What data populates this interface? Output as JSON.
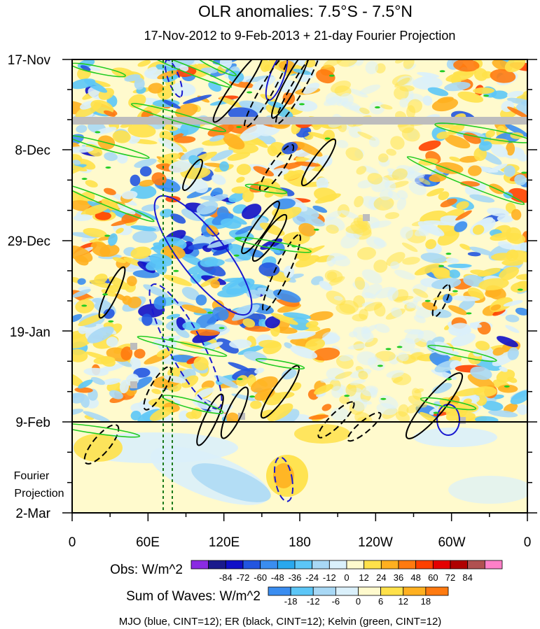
{
  "chart_data": {
    "type": "heatmap",
    "title": "OLR anomalies: 7.5°S - 7.5°N",
    "subtitle": "17-Nov-2012 to 9-Feb-2013 + 21-day Fourier Projection",
    "x_tick_labels": [
      "0",
      "60E",
      "120E",
      "180",
      "120W",
      "60W",
      "0"
    ],
    "y_tick_labels": [
      "17-Nov",
      "8-Dec",
      "29-Dec",
      "19-Jan",
      "9-Feb",
      "2-Mar"
    ],
    "y_side_label": [
      "Fourier",
      "Projection"
    ],
    "obs_label": "Obs: W/m^2",
    "obs_levels": [
      "-84",
      "-72",
      "-60",
      "-48",
      "-36",
      "-24",
      "-12",
      "0",
      "12",
      "24",
      "36",
      "48",
      "60",
      "72",
      "84"
    ],
    "obs_colors": [
      "#8a2be2",
      "#1a1a8c",
      "#1010c8",
      "#2255e0",
      "#3a8df0",
      "#29a8ee",
      "#5cc6f7",
      "#a8d8f5",
      "#daf0fb",
      "#fffacd",
      "#ffe14a",
      "#ffb020",
      "#ff7a10",
      "#ff4000",
      "#e40000",
      "#b00000",
      "#b05050",
      "#ff80c8"
    ],
    "waves_label": "Sum of Waves: W/m^2",
    "wave_levels": [
      "-18",
      "-12",
      "-6",
      "0",
      "6",
      "12",
      "18"
    ],
    "wave_colors": [
      "#3a8df0",
      "#5cc6f7",
      "#a8d8f5",
      "#daf0fb",
      "#fffacd",
      "#ffe14a",
      "#ffb020",
      "#ff7a10"
    ],
    "footer": "MJO (blue, CINT=12); ER (black, CINT=12); Kelvin (green, CINT=12)",
    "x_range": [
      0,
      360
    ],
    "y_range": [
      "17-Nov",
      "2-Mar"
    ],
    "mjo_color": "#1818d0",
    "er_color": "#000000",
    "kelvin_color": "#22cc22",
    "grid": false
  }
}
